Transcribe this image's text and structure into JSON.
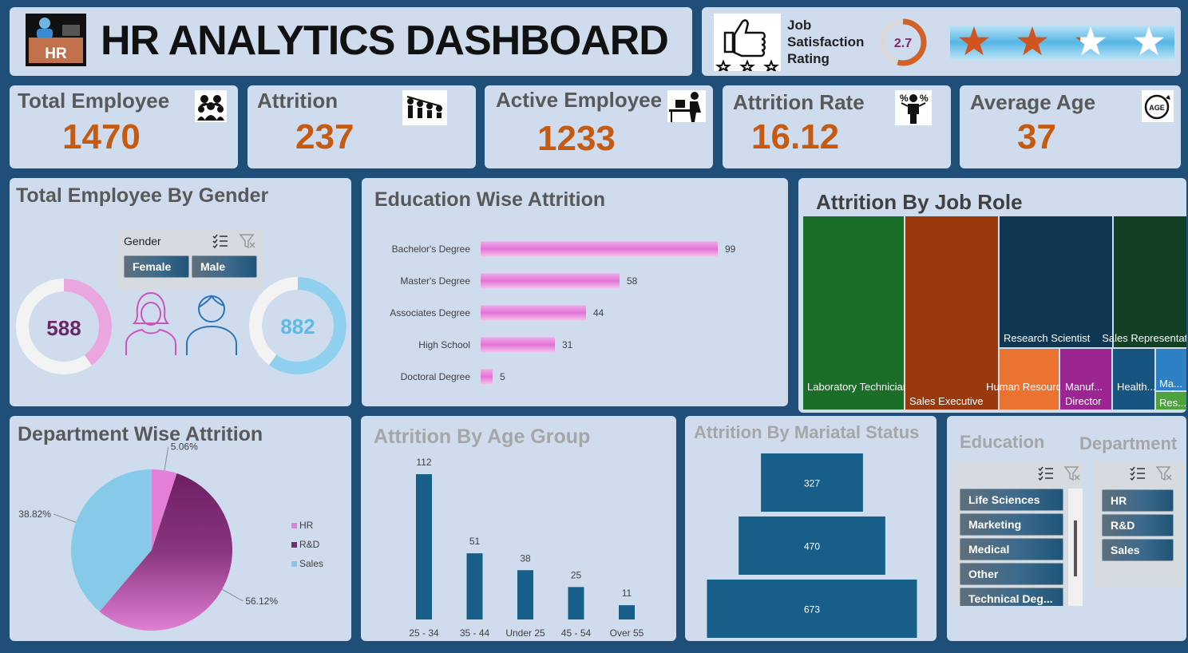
{
  "header": {
    "title": "HR ANALYTICS DASHBOARD",
    "logo_text": "HR"
  },
  "satisfaction": {
    "label_line1": "Job",
    "label_line2": "Satisfaction",
    "label_line3": "Rating",
    "value": "2.7",
    "rating_fraction": 0.54,
    "stars_total": 4
  },
  "kpis": [
    {
      "label": "Total Employee",
      "value": "1470",
      "icon": "team-icon"
    },
    {
      "label": "Attrition",
      "value": "237",
      "icon": "attrition-icon"
    },
    {
      "label": "Active Employee",
      "value": "1233",
      "icon": "worker-desk-icon"
    },
    {
      "label": "Attrition Rate",
      "value": "16.12",
      "icon": "percent-person-icon"
    },
    {
      "label": "Average Age",
      "value": "37",
      "icon": "age-icon"
    }
  ],
  "gender": {
    "title": "Total Employee By Gender",
    "slicer_title": "Gender",
    "options": [
      "Female",
      "Male"
    ],
    "female_value": "588",
    "male_value": "882",
    "female_fraction": 0.4,
    "male_fraction": 0.6
  },
  "education_chart": {
    "title": "Education Wise Attrition",
    "chart_data": {
      "type": "bar",
      "categories": [
        "Bachelor's Degree",
        "Master's Degree",
        "Associates Degree",
        "High School",
        "Doctoral Degree"
      ],
      "values": [
        99,
        58,
        44,
        31,
        5
      ],
      "xlim": [
        0,
        99
      ]
    }
  },
  "jobrole": {
    "title": "Attrition By Job Role",
    "chart_data": {
      "type": "treemap",
      "labels": [
        "Laboratory Technician",
        "Sales Executive",
        "Research Scientist",
        "Sales Representative",
        "Human Resources",
        "Manuf...",
        "Director",
        "Health... Repre...",
        "Ma...",
        "Res..."
      ]
    }
  },
  "department": {
    "title": "Department Wise Attrition",
    "chart_data": {
      "type": "pie",
      "categories": [
        "HR",
        "R&D",
        "Sales"
      ],
      "values": [
        5.06,
        56.12,
        38.82
      ],
      "labels": [
        "5.06%",
        "56.12%",
        "38.82%"
      ],
      "legend": "right"
    },
    "colors": {
      "HR": "#e37fd6",
      "R&D": "#7a2b6e",
      "Sales": "#86c9e9"
    }
  },
  "age_chart": {
    "title": "Attrition By Age Group",
    "chart_data": {
      "type": "bar",
      "categories": [
        "25 - 34",
        "35 - 44",
        "Under 25",
        "45 - 54",
        "Over 55"
      ],
      "values": [
        112,
        51,
        38,
        25,
        11
      ],
      "ylim": [
        0,
        112
      ]
    }
  },
  "marital_chart": {
    "title": "Attrition By Mariatal Status",
    "chart_data": {
      "type": "funnel",
      "values": [
        327,
        470,
        673
      ],
      "labels": [
        "327",
        "470",
        "673"
      ]
    }
  },
  "slicers": {
    "education_title": "Education",
    "education_options": [
      "Life Sciences",
      "Marketing",
      "Medical",
      "Other",
      "Technical Deg..."
    ],
    "department_title": "Department",
    "department_options": [
      "HR",
      "R&D",
      "Sales"
    ]
  }
}
